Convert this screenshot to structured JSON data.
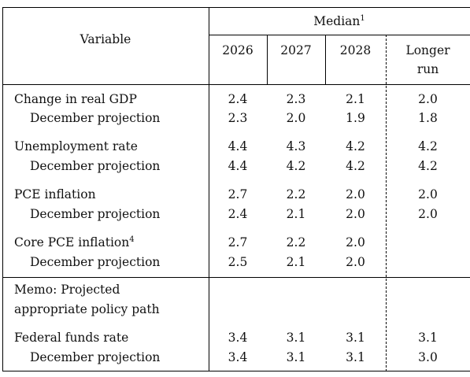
{
  "header": {
    "variable": "Variable",
    "median": "Median",
    "median_note": "1",
    "years": [
      "2026",
      "2027",
      "2028"
    ],
    "longer_run_line1": "Longer",
    "longer_run_line2": "run"
  },
  "rows": [
    {
      "label": "Change in real GDP",
      "note": "",
      "values": [
        "2.4",
        "2.3",
        "2.1",
        "2.0"
      ]
    },
    {
      "label": "December projection",
      "note": "",
      "values": [
        "2.3",
        "2.0",
        "1.9",
        "1.8"
      ]
    },
    {
      "label": "Unemployment rate",
      "note": "",
      "values": [
        "4.4",
        "4.3",
        "4.2",
        "4.2"
      ]
    },
    {
      "label": "December projection",
      "note": "",
      "values": [
        "4.4",
        "4.2",
        "4.2",
        "4.2"
      ]
    },
    {
      "label": "PCE inflation",
      "note": "",
      "values": [
        "2.7",
        "2.2",
        "2.0",
        "2.0"
      ]
    },
    {
      "label": "December projection",
      "note": "",
      "values": [
        "2.4",
        "2.1",
        "2.0",
        "2.0"
      ]
    },
    {
      "label": "Core PCE inflation",
      "note": "4",
      "values": [
        "2.7",
        "2.2",
        "2.0",
        ""
      ]
    },
    {
      "label": "December projection",
      "note": "",
      "values": [
        "2.5",
        "2.1",
        "2.0",
        ""
      ]
    }
  ],
  "memo": {
    "line1": "Memo: Projected",
    "line2": "appropriate policy path"
  },
  "memo_rows": [
    {
      "label": "Federal funds rate",
      "values": [
        "3.4",
        "3.1",
        "3.1",
        "3.1"
      ]
    },
    {
      "label": "December projection",
      "values": [
        "3.4",
        "3.1",
        "3.1",
        "3.0"
      ]
    }
  ]
}
